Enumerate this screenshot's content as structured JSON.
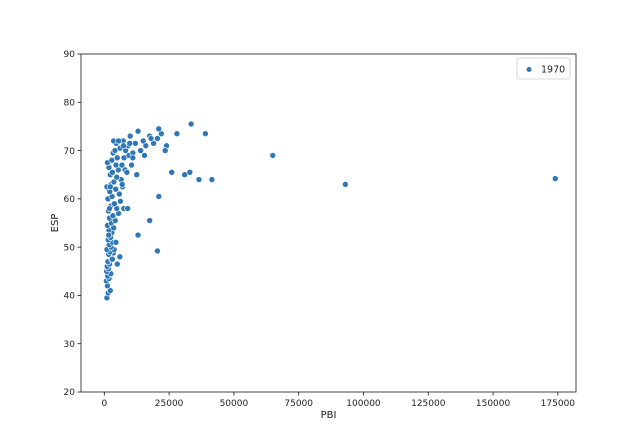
{
  "chart_data": {
    "type": "scatter",
    "xlabel": "PBI",
    "ylabel": "ESP",
    "xlim": [
      -9000,
      182000
    ],
    "ylim": [
      20,
      90
    ],
    "xticks": [
      0,
      25000,
      50000,
      75000,
      100000,
      125000,
      150000,
      175000
    ],
    "yticks": [
      20,
      30,
      40,
      50,
      60,
      70,
      80,
      90
    ],
    "grid": false,
    "legend": "top-right",
    "color": "#2f78b5",
    "series": [
      {
        "name": "1970",
        "points": [
          [
            1000,
            39.5
          ],
          [
            1500,
            40.5
          ],
          [
            2300,
            41
          ],
          [
            1200,
            42
          ],
          [
            800,
            43
          ],
          [
            1800,
            43.5
          ],
          [
            1300,
            44
          ],
          [
            2500,
            44.5
          ],
          [
            900,
            45
          ],
          [
            1600,
            45.5
          ],
          [
            1100,
            46
          ],
          [
            2000,
            46.5
          ],
          [
            5000,
            46.5
          ],
          [
            1400,
            47
          ],
          [
            2800,
            47.5
          ],
          [
            6000,
            48
          ],
          [
            1700,
            48.5
          ],
          [
            3500,
            48.8
          ],
          [
            2200,
            49
          ],
          [
            1000,
            49.5
          ],
          [
            3800,
            49.5
          ],
          [
            2600,
            50
          ],
          [
            1900,
            50.5
          ],
          [
            3200,
            51
          ],
          [
            4500,
            51
          ],
          [
            1500,
            51.5
          ],
          [
            2400,
            52
          ],
          [
            13000,
            52.5
          ],
          [
            2900,
            53
          ],
          [
            1800,
            53.5
          ],
          [
            3600,
            54
          ],
          [
            1200,
            54.5
          ],
          [
            2700,
            55
          ],
          [
            4200,
            55.5
          ],
          [
            17500,
            55.5
          ],
          [
            2000,
            56
          ],
          [
            3300,
            56.5
          ],
          [
            5500,
            57
          ],
          [
            1600,
            57.5
          ],
          [
            4800,
            58
          ],
          [
            7500,
            58
          ],
          [
            9000,
            58
          ],
          [
            2500,
            58.5
          ],
          [
            3900,
            59
          ],
          [
            6200,
            59.5
          ],
          [
            1400,
            60
          ],
          [
            3000,
            60.5
          ],
          [
            5800,
            61
          ],
          [
            2100,
            61.5
          ],
          [
            4400,
            62
          ],
          [
            1000,
            62.5
          ],
          [
            7000,
            62.5
          ],
          [
            2600,
            63
          ],
          [
            3700,
            63.5
          ],
          [
            6500,
            64
          ],
          [
            4800,
            64.5
          ],
          [
            2300,
            65
          ],
          [
            3100,
            65.5
          ],
          [
            5400,
            66
          ],
          [
            8000,
            66
          ],
          [
            1800,
            66.5
          ],
          [
            4500,
            67
          ],
          [
            6800,
            67
          ],
          [
            10500,
            67
          ],
          [
            1200,
            67.5
          ],
          [
            2900,
            68
          ],
          [
            5000,
            68.5
          ],
          [
            7600,
            68.5
          ],
          [
            9500,
            69
          ],
          [
            3400,
            69.5
          ],
          [
            11000,
            69.5
          ],
          [
            4100,
            70
          ],
          [
            8200,
            70
          ],
          [
            14000,
            70
          ],
          [
            6100,
            70.5
          ],
          [
            9200,
            71
          ],
          [
            16000,
            71
          ],
          [
            4600,
            71.5
          ],
          [
            12000,
            71.5
          ],
          [
            19000,
            71.5
          ],
          [
            7300,
            72
          ],
          [
            15000,
            72
          ],
          [
            20500,
            72.5
          ],
          [
            3600,
            72
          ],
          [
            10000,
            73
          ],
          [
            17500,
            73
          ],
          [
            22000,
            73.5
          ],
          [
            13000,
            74
          ],
          [
            21000,
            74.5
          ],
          [
            24000,
            71
          ],
          [
            23500,
            70
          ],
          [
            26000,
            65.5
          ],
          [
            28000,
            73.5
          ],
          [
            31000,
            65
          ],
          [
            33000,
            65.5
          ],
          [
            33500,
            75.5
          ],
          [
            36500,
            64
          ],
          [
            39000,
            73.5
          ],
          [
            41500,
            64
          ],
          [
            21000,
            60.5
          ],
          [
            20500,
            49.2
          ],
          [
            65000,
            69
          ],
          [
            93000,
            63
          ],
          [
            174000,
            64.2
          ],
          [
            11000,
            68.5
          ],
          [
            5500,
            72
          ],
          [
            15500,
            69
          ],
          [
            18000,
            72.5
          ],
          [
            8700,
            65.5
          ],
          [
            2000,
            58
          ],
          [
            9800,
            71.5
          ],
          [
            6900,
            63
          ],
          [
            12500,
            65
          ],
          [
            3100,
            47.5
          ],
          [
            7400,
            71
          ],
          [
            1700,
            52.5
          ],
          [
            2300,
            62.5
          ]
        ]
      }
    ]
  }
}
